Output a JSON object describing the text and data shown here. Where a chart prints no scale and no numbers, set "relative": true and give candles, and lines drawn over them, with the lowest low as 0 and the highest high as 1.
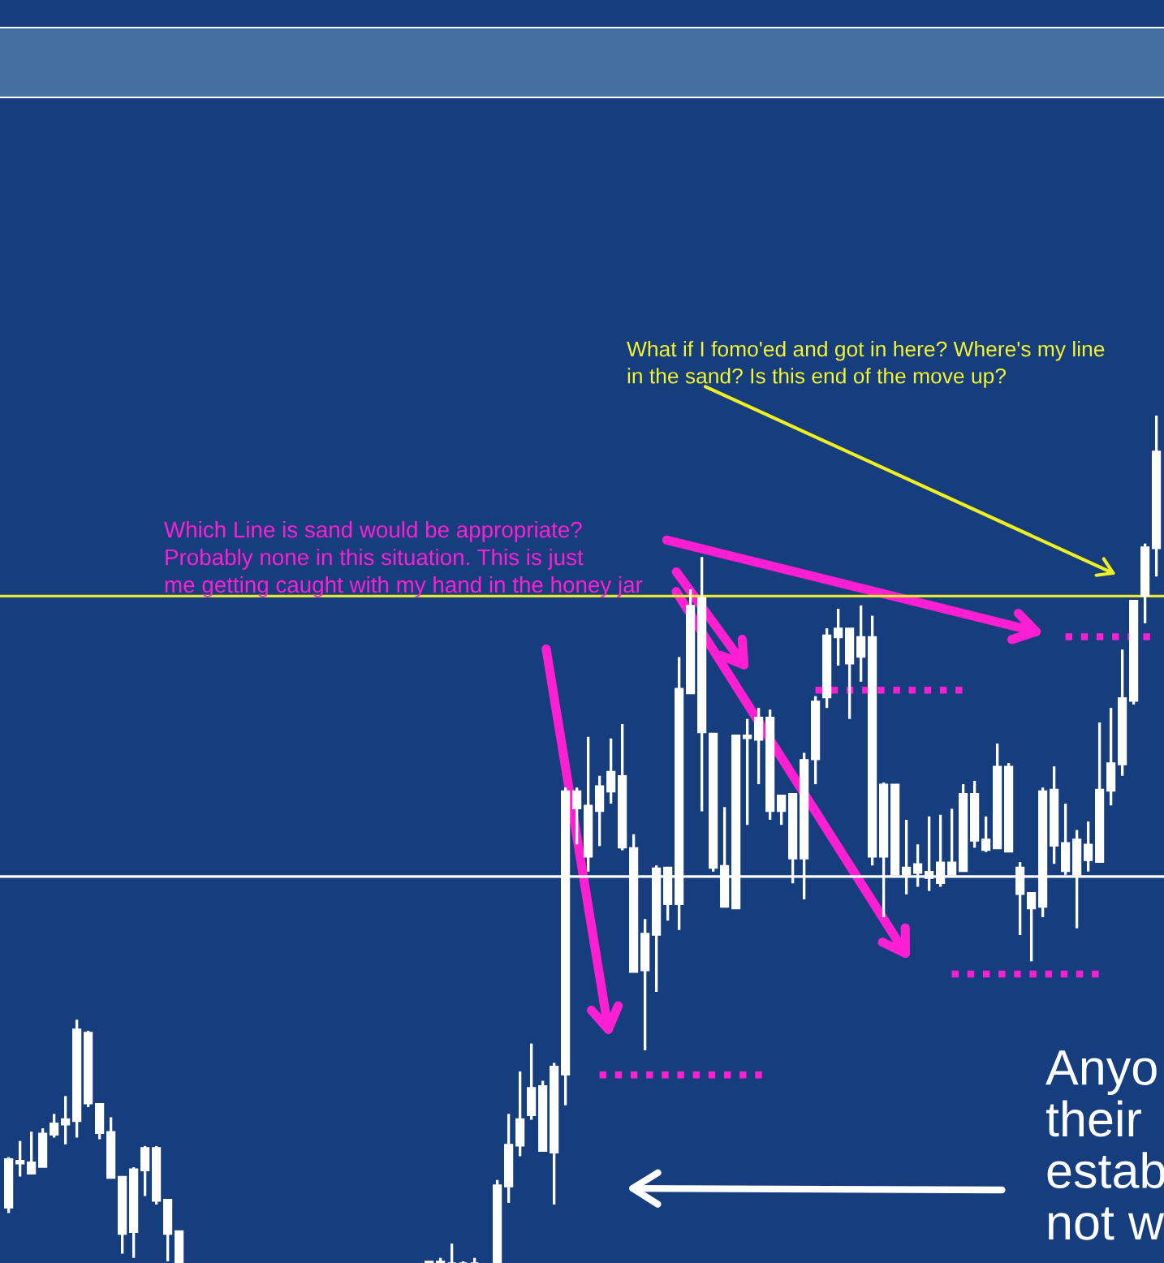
{
  "chart_data": {
    "type": "candlestick",
    "relative": true,
    "color": "#ffffff",
    "categories": [
      null,
      null,
      null,
      null,
      null,
      null,
      null,
      null,
      null,
      null,
      null,
      null,
      null,
      null,
      null,
      null,
      null,
      null,
      null,
      null,
      null,
      null,
      null,
      null,
      null,
      null,
      null,
      null,
      null,
      null,
      null,
      null,
      null,
      null,
      null,
      null,
      null,
      null,
      null,
      null,
      null,
      null,
      null,
      null,
      null,
      null,
      null,
      null,
      null,
      null,
      null,
      null,
      null,
      null,
      null,
      null,
      null,
      null,
      null,
      null,
      null,
      null,
      null,
      null,
      null,
      null,
      null,
      null,
      null,
      null,
      null,
      null,
      null,
      null,
      null,
      null,
      null,
      null,
      null,
      null,
      null,
      null,
      null,
      null,
      null,
      null,
      null,
      null,
      null,
      null,
      null,
      null,
      null,
      null,
      null,
      null,
      null,
      null,
      null,
      null,
      null,
      null
    ],
    "ohlc": [
      [
        0.065,
        0.125,
        0.059,
        0.123
      ],
      [
        0.117,
        0.144,
        0.102,
        0.121
      ],
      [
        0.105,
        0.155,
        0.105,
        0.119
      ],
      [
        0.113,
        0.159,
        0.113,
        0.153
      ],
      [
        0.151,
        0.176,
        0.148,
        0.165
      ],
      [
        0.163,
        0.197,
        0.14,
        0.17
      ],
      [
        0.167,
        0.287,
        0.148,
        0.276
      ],
      [
        0.188,
        0.274,
        0.184,
        0.272
      ],
      [
        0.153,
        0.188,
        0.146,
        0.188
      ],
      [
        0.1,
        0.172,
        0.1,
        0.155
      ],
      [
        0.034,
        0.102,
        0.011,
        0.102
      ],
      [
        0.036,
        0.113,
        0.006,
        0.111
      ],
      [
        0.109,
        0.138,
        0.079,
        0.136
      ],
      [
        0.073,
        0.138,
        0.069,
        0.136
      ],
      [
        0.034,
        0.075,
        0.002,
        0.075
      ],
      [
        0,
        0.038,
        0,
        0.038
      ],
      null,
      null,
      null,
      null,
      null,
      null,
      null,
      null,
      null,
      null,
      null,
      null,
      null,
      null,
      null,
      null,
      null,
      null,
      null,
      null,
      null,
      [
        0,
        0.002,
        0,
        0.002
      ],
      [
        0,
        0.006,
        0,
        0.002
      ],
      [
        0,
        0.023,
        0,
        0
      ],
      [
        0,
        0.002,
        0,
        0
      ],
      [
        0,
        0.006,
        0,
        0
      ],
      null,
      [
        0,
        0.098,
        0,
        0.092
      ],
      [
        0.09,
        0.176,
        0.071,
        0.14
      ],
      [
        0.138,
        0.226,
        0.126,
        0.17
      ],
      [
        0.174,
        0.259,
        0.169,
        0.207
      ],
      [
        0.132,
        0.215,
        0.132,
        0.209
      ],
      [
        0.13,
        0.236,
        0.069,
        0.232
      ],
      [
        0.222,
        0.561,
        0.186,
        0.557
      ],
      [
        0.536,
        0.561,
        0.494,
        0.557
      ],
      [
        0.479,
        0.621,
        0.462,
        0.54
      ],
      [
        0.533,
        0.575,
        0.492,
        0.563
      ],
      [
        0.556,
        0.619,
        0.542,
        0.58
      ],
      [
        0.49,
        0.636,
        0.487,
        0.575
      ],
      [
        0.343,
        0.506,
        0.343,
        0.49
      ],
      [
        0.345,
        0.406,
        0.251,
        0.389
      ],
      [
        0.387,
        0.469,
        0.32,
        0.466
      ],
      [
        0.423,
        0.467,
        0.404,
        0.467
      ],
      [
        0.423,
        0.715,
        0.393,
        0.678
      ],
      [
        0.672,
        0.795,
        0.672,
        0.776
      ],
      [
        0.626,
        0.833,
        0.533,
        0.785
      ],
      [
        0.466,
        0.625,
        0.462,
        0.625
      ],
      [
        0.42,
        0.538,
        0.42,
        0.469
      ],
      [
        0.418,
        0.623,
        0.418,
        0.623
      ],
      [
        0.619,
        0.642,
        0.517,
        0.623
      ],
      [
        0.617,
        0.655,
        0.565,
        0.644
      ],
      [
        0.533,
        0.653,
        0.523,
        0.644
      ],
      [
        0.533,
        0.552,
        0.517,
        0.552
      ],
      [
        0.477,
        0.554,
        0.448,
        0.554
      ],
      [
        0.477,
        0.602,
        0.429,
        0.594
      ],
      [
        0.594,
        0.669,
        0.565,
        0.663
      ],
      [
        0.667,
        0.749,
        0.655,
        0.741
      ],
      [
        0.738,
        0.772,
        0.705,
        0.749
      ],
      [
        0.707,
        0.749,
        0.642,
        0.749
      ],
      [
        0.715,
        0.776,
        0.686,
        0.739
      ],
      [
        0.479,
        0.764,
        0.469,
        0.739
      ],
      [
        0.479,
        0.567,
        0.408,
        0.565
      ],
      [
        0.458,
        0.565,
        0.458,
        0.565
      ],
      [
        0.458,
        0.523,
        0.435,
        0.467
      ],
      [
        0.46,
        0.494,
        0.444,
        0.471
      ],
      [
        0.454,
        0.527,
        0.439,
        0.462
      ],
      [
        0.448,
        0.529,
        0.444,
        0.473
      ],
      [
        0.458,
        0.536,
        0.458,
        0.473
      ],
      [
        0.462,
        0.565,
        0.462,
        0.554
      ],
      [
        0.498,
        0.569,
        0.49,
        0.554
      ],
      [
        0.487,
        0.527,
        0.485,
        0.5
      ],
      [
        0.489,
        0.613,
        0.489,
        0.586
      ],
      [
        0.485,
        0.59,
        0.485,
        0.586
      ],
      [
        0.435,
        0.473,
        0.387,
        0.467
      ],
      [
        0.418,
        0.437,
        0.356,
        0.437
      ],
      [
        0.42,
        0.561,
        0.408,
        0.557
      ],
      [
        0.492,
        0.586,
        0.471,
        0.559
      ],
      [
        0.462,
        0.542,
        0.458,
        0.496
      ],
      [
        0.458,
        0.511,
        0.395,
        0.5
      ],
      [
        0.475,
        0.521,
        0.462,
        0.494
      ],
      [
        0.473,
        0.638,
        0.473,
        0.559
      ],
      [
        0.557,
        0.655,
        0.54,
        0.59
      ],
      [
        0.588,
        0.724,
        0.575,
        0.667
      ],
      [
        0.663,
        0.782,
        0.659,
        0.782
      ],
      [
        0.787,
        0.849,
        0.755,
        0.845
      ],
      [
        0.843,
        1,
        0.81,
        0.958
      ]
    ],
    "series": [
      {
        "type": "line",
        "line_style": "dotted",
        "color": "#ff1fd2",
        "values": [
          null,
          null,
          null,
          null,
          null,
          null,
          null,
          null,
          null,
          null,
          null,
          null,
          null,
          null,
          null,
          null,
          null,
          null,
          null,
          null,
          null,
          null,
          null,
          null,
          null,
          null,
          null,
          null,
          null,
          null,
          null,
          null,
          null,
          null,
          null,
          null,
          null,
          null,
          null,
          null,
          null,
          null,
          null,
          null,
          null,
          null,
          null,
          null,
          null,
          null,
          null,
          null,
          0.222,
          0.222,
          0.222,
          0.222,
          0.222,
          0.222,
          0.222,
          0.222,
          0.222,
          0.222,
          0.222,
          0.222,
          0.222,
          0.222,
          0.222,
          0.222,
          null,
          null,
          null,
          null,
          null,
          null,
          null,
          null,
          null,
          null,
          null,
          null,
          null,
          null,
          null,
          null,
          null,
          null,
          null,
          null,
          null,
          null,
          null,
          null,
          null,
          null,
          null,
          null,
          null,
          null,
          null,
          null,
          null,
          null
        ]
      },
      {
        "type": "line",
        "line_style": "dotted",
        "color": "#ff1fd2",
        "values": [
          null,
          null,
          null,
          null,
          null,
          null,
          null,
          null,
          null,
          null,
          null,
          null,
          null,
          null,
          null,
          null,
          null,
          null,
          null,
          null,
          null,
          null,
          null,
          null,
          null,
          null,
          null,
          null,
          null,
          null,
          null,
          null,
          null,
          null,
          null,
          null,
          null,
          null,
          null,
          null,
          null,
          null,
          null,
          null,
          null,
          null,
          null,
          null,
          null,
          null,
          null,
          null,
          null,
          null,
          null,
          null,
          null,
          null,
          null,
          null,
          null,
          null,
          null,
          null,
          null,
          null,
          null,
          null,
          null,
          null,
          null,
          0.676,
          0.676,
          0.676,
          0.676,
          0.676,
          0.676,
          0.676,
          0.676,
          0.676,
          0.676,
          0.676,
          0.676,
          0.676,
          0.676,
          null,
          null,
          null,
          null,
          null,
          null,
          null,
          null,
          null,
          null,
          null,
          null,
          null,
          null,
          null,
          null,
          null
        ]
      },
      {
        "type": "line",
        "line_style": "dotted",
        "color": "#ff1fd2",
        "values": [
          null,
          null,
          null,
          null,
          null,
          null,
          null,
          null,
          null,
          null,
          null,
          null,
          null,
          null,
          null,
          null,
          null,
          null,
          null,
          null,
          null,
          null,
          null,
          null,
          null,
          null,
          null,
          null,
          null,
          null,
          null,
          null,
          null,
          null,
          null,
          null,
          null,
          null,
          null,
          null,
          null,
          null,
          null,
          null,
          null,
          null,
          null,
          null,
          null,
          null,
          null,
          null,
          null,
          null,
          null,
          null,
          null,
          null,
          null,
          null,
          null,
          null,
          null,
          null,
          null,
          null,
          null,
          null,
          null,
          null,
          null,
          null,
          null,
          null,
          null,
          null,
          null,
          null,
          null,
          null,
          null,
          null,
          null,
          0.341,
          0.341,
          0.341,
          0.341,
          0.341,
          0.341,
          0.341,
          0.341,
          0.341,
          0.341,
          0.341,
          0.341,
          0.341,
          0.341,
          null,
          null,
          null,
          null,
          null
        ]
      },
      {
        "type": "line",
        "line_style": "dotted",
        "color": "#ff1fd2",
        "values": [
          null,
          null,
          null,
          null,
          null,
          null,
          null,
          null,
          null,
          null,
          null,
          null,
          null,
          null,
          null,
          null,
          null,
          null,
          null,
          null,
          null,
          null,
          null,
          null,
          null,
          null,
          null,
          null,
          null,
          null,
          null,
          null,
          null,
          null,
          null,
          null,
          null,
          null,
          null,
          null,
          null,
          null,
          null,
          null,
          null,
          null,
          null,
          null,
          null,
          null,
          null,
          null,
          null,
          null,
          null,
          null,
          null,
          null,
          null,
          null,
          null,
          null,
          null,
          null,
          null,
          null,
          null,
          null,
          null,
          null,
          null,
          null,
          null,
          null,
          null,
          null,
          null,
          null,
          null,
          null,
          null,
          null,
          null,
          null,
          null,
          null,
          null,
          null,
          null,
          null,
          null,
          null,
          null,
          0.739,
          0.739,
          0.739,
          0.739,
          0.739,
          0.739,
          0.739,
          0.739,
          0.739
        ]
      }
    ],
    "ref_lines": [
      {
        "axis": "y",
        "value": 0.456,
        "color": "#ffffff"
      },
      {
        "axis": "y",
        "value": 0.787,
        "color": "#e8e832"
      }
    ],
    "annotations": [
      "What if I fomo'ed and got in here? Where's my line\nin the sand? Is this end of the move up?",
      "Which Line is sand would be appropriate?\nProbably none in this situation. This is just\nme getting caught with my hand in the honey jar",
      "Anyo\ntheir\nestab\nnot w"
    ]
  }
}
